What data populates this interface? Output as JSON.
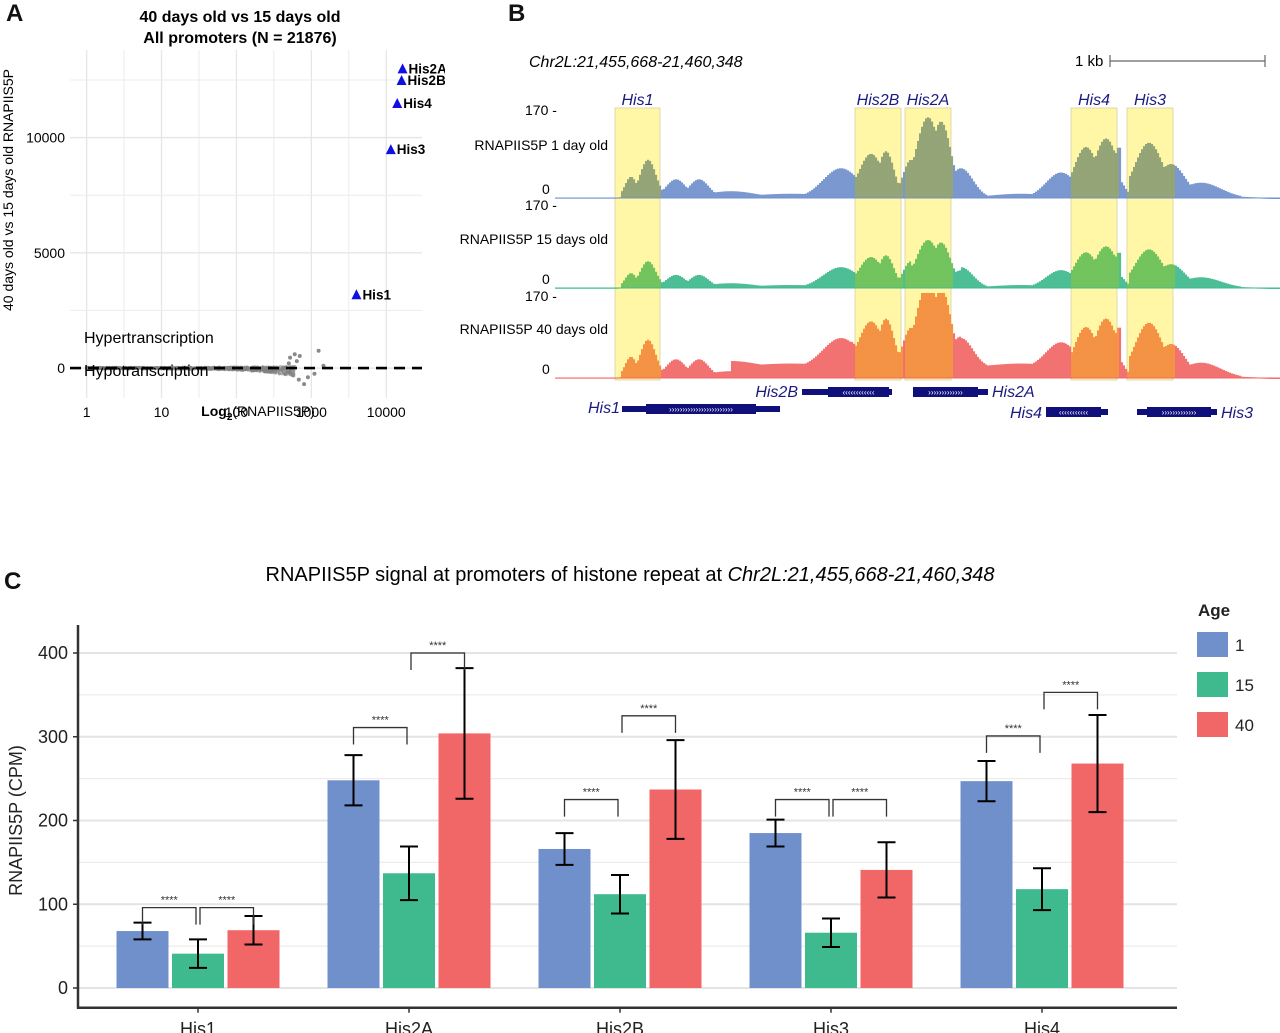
{
  "panels": {
    "a_letter": "A",
    "b_letter": "B",
    "c_letter": "C"
  },
  "chart_data": [
    {
      "id": "A",
      "type": "scatter",
      "title": [
        "40 days old vs 15 days old",
        "All promoters (N = 21876)"
      ],
      "xlabel": "Log2(RNAPIIS5P)",
      "xlabel_main": "Log",
      "xlabel_sub": "2",
      "xlabel_rest": "(RNAPIIS5P)",
      "ylabel": "40 days old vs 15 days old RNAPIIS5P",
      "xscale": "log",
      "xlim": [
        0.6,
        30000
      ],
      "ylim": [
        -1300,
        13800
      ],
      "xticks": [
        1,
        10,
        100,
        1000,
        10000
      ],
      "xtick_labels": [
        "1",
        "10",
        "100",
        "1000",
        "10000"
      ],
      "yticks": [
        0,
        5000,
        10000
      ],
      "ytick_labels": [
        "0",
        "5000",
        "10000"
      ],
      "grid": true,
      "reference_line": {
        "y": 0,
        "style": "dashed"
      },
      "annotations": {
        "above": "Hypertranscription",
        "below": "Hypotranscription"
      },
      "highlight_color": "#1010e0",
      "highlight_points": [
        {
          "label": "His2A",
          "x": 16500,
          "y": 13000
        },
        {
          "label": "His2B",
          "x": 16000,
          "y": 12500
        },
        {
          "label": "His4",
          "x": 14000,
          "y": 11500
        },
        {
          "label": "His3",
          "x": 11500,
          "y": 9500
        },
        {
          "label": "His1",
          "x": 4000,
          "y": 3200
        }
      ],
      "background_points_note": "dense gray cloud of ~21876 promoters near y=0, spreading with x up to ~1500",
      "background_outliers": [
        {
          "x": 520,
          "y": 450
        },
        {
          "x": 600,
          "y": 600
        },
        {
          "x": 640,
          "y": 300
        },
        {
          "x": 700,
          "y": 520
        },
        {
          "x": 560,
          "y": -300
        },
        {
          "x": 680,
          "y": -500
        },
        {
          "x": 800,
          "y": -700
        },
        {
          "x": 900,
          "y": -400
        },
        {
          "x": 1250,
          "y": 750
        },
        {
          "x": 1100,
          "y": -250
        },
        {
          "x": 1450,
          "y": 100
        },
        {
          "x": 500,
          "y": 200
        }
      ]
    },
    {
      "id": "B",
      "type": "area",
      "title": "Chr2L:21,455,668-21,460,348",
      "scale_bar_label": "1 kb",
      "genes_highlight": [
        "His1",
        "His2B",
        "His2A",
        "His4",
        "His3"
      ],
      "highlight_color": "#fff7a6",
      "tracks": [
        {
          "name": "RNAPIIS5P 1 day old",
          "color": "#7090cc",
          "overlap_color": "#8ea074",
          "ymax_label": "170 -",
          "ymin_label": "0"
        },
        {
          "name": "RNAPIIS5P 15 days old",
          "color": "#3fb98e",
          "overlap_color": "#6cc05a",
          "ymax_label": "170 -",
          "ymin_label": "0"
        },
        {
          "name": "RNAPIIS5P 40 days old",
          "color": "#f16666",
          "overlap_color": "#f38d3f",
          "ymax_label": "170 -",
          "ymin_label": "0"
        }
      ],
      "ymax": 170,
      "gene_models": [
        {
          "name": "His1",
          "strand": "+"
        },
        {
          "name": "His2B",
          "strand": "-"
        },
        {
          "name": "His2A",
          "strand": "+"
        },
        {
          "name": "His4",
          "strand": "-"
        },
        {
          "name": "His3",
          "strand": "+"
        }
      ],
      "gene_color": "#10107a"
    },
    {
      "id": "C",
      "type": "bar",
      "title_plain": "RNAPIIS5P signal at promoters of histone repeat at ",
      "title_italic": "Chr2L:21,455,668-21,460,348",
      "xlabel": "",
      "ylabel": "RNAPIIS5P (CPM)",
      "ylim": [
        -20,
        430
      ],
      "yticks": [
        0,
        100,
        200,
        300,
        400
      ],
      "ytick_labels": [
        "0",
        "100",
        "200",
        "300",
        "400"
      ],
      "minor_gridlines": [
        50,
        150,
        250,
        350
      ],
      "categories": [
        "His1",
        "His2A",
        "His2B",
        "His3",
        "His4"
      ],
      "legend_title": "Age",
      "legend_position": "right",
      "series": [
        {
          "name": "1",
          "color": "#7090cc",
          "values": [
            68,
            248,
            166,
            185,
            247
          ],
          "err": [
            10,
            30,
            19,
            16,
            24
          ]
        },
        {
          "name": "15",
          "color": "#3fb98e",
          "values": [
            41,
            137,
            112,
            66,
            118
          ],
          "err": [
            17,
            32,
            23,
            17,
            25
          ]
        },
        {
          "name": "40",
          "color": "#f16666",
          "values": [
            69,
            304,
            237,
            141,
            268
          ],
          "err": [
            17,
            78,
            59,
            33,
            58
          ]
        }
      ],
      "significance": [
        {
          "category": "His1",
          "from": 0,
          "to": 1,
          "y": 96,
          "label": "****"
        },
        {
          "category": "His1",
          "from": 1,
          "to": 2,
          "y": 96,
          "label": "****"
        },
        {
          "category": "His2A",
          "from": 0,
          "to": 1,
          "y": 311,
          "label": "****"
        },
        {
          "category": "His2A",
          "from": 1,
          "to": 2,
          "y": 400,
          "label": "****"
        },
        {
          "category": "His2B",
          "from": 0,
          "to": 1,
          "y": 225,
          "label": "****"
        },
        {
          "category": "His2B",
          "from": 1,
          "to": 2,
          "y": 325,
          "label": "****"
        },
        {
          "category": "His3",
          "from": 0,
          "to": 1,
          "y": 225,
          "label": "****"
        },
        {
          "category": "His3",
          "from": 1,
          "to": 2,
          "y": 225,
          "label": "****"
        },
        {
          "category": "His4",
          "from": 0,
          "to": 1,
          "y": 301,
          "label": "****"
        },
        {
          "category": "His4",
          "from": 1,
          "to": 2,
          "y": 353,
          "label": "****"
        }
      ]
    }
  ]
}
